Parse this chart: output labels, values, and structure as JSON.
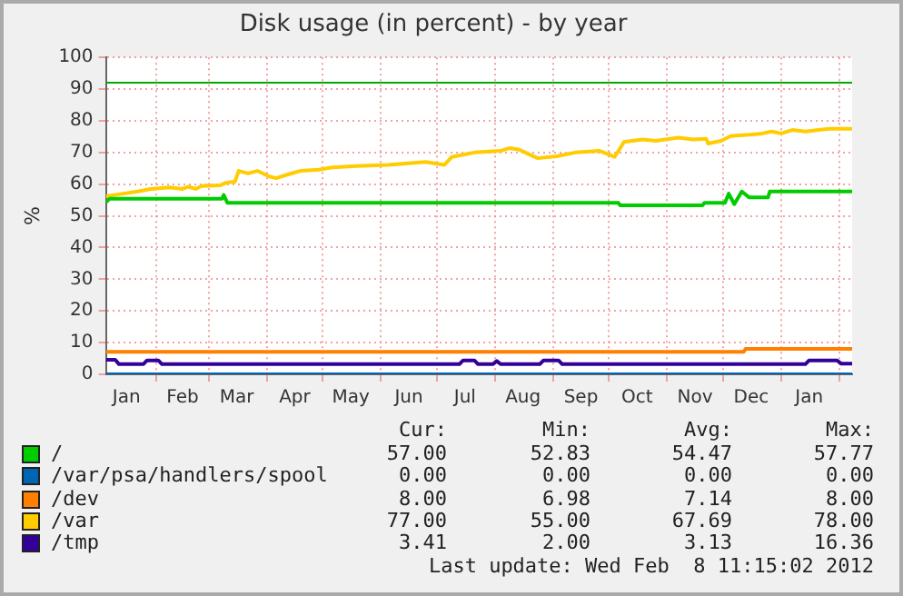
{
  "chart_data": {
    "type": "line",
    "title": "Disk usage (in percent) - by year",
    "ylabel": "%",
    "xlim": [
      "2011-01-05",
      "2012-02-08"
    ],
    "xticks": [
      {
        "value": "2011-01-16",
        "label": "Jan"
      },
      {
        "value": "2011-02-01",
        "label": null
      },
      {
        "value": "2011-02-15",
        "label": "Feb"
      },
      {
        "value": "2011-03-01",
        "label": null
      },
      {
        "value": "2011-03-16",
        "label": "Mar"
      },
      {
        "value": "2011-04-01",
        "label": null
      },
      {
        "value": "2011-04-16",
        "label": "Apr"
      },
      {
        "value": "2011-05-01",
        "label": null
      },
      {
        "value": "2011-05-16",
        "label": "May"
      },
      {
        "value": "2011-06-01",
        "label": null
      },
      {
        "value": "2011-06-16",
        "label": "Jun"
      },
      {
        "value": "2011-07-01",
        "label": null
      },
      {
        "value": "2011-07-16",
        "label": "Jul"
      },
      {
        "value": "2011-08-01",
        "label": null
      },
      {
        "value": "2011-08-16",
        "label": "Aug"
      },
      {
        "value": "2011-09-01",
        "label": null
      },
      {
        "value": "2011-09-16",
        "label": "Sep"
      },
      {
        "value": "2011-10-01",
        "label": null
      },
      {
        "value": "2011-10-16",
        "label": "Oct"
      },
      {
        "value": "2011-11-01",
        "label": null
      },
      {
        "value": "2011-11-16",
        "label": "Nov"
      },
      {
        "value": "2011-12-01",
        "label": null
      },
      {
        "value": "2011-12-16",
        "label": "Dec"
      },
      {
        "value": "2012-01-01",
        "label": null
      },
      {
        "value": "2012-01-16",
        "label": "Jan"
      },
      {
        "value": "2012-02-01",
        "label": null
      }
    ],
    "ylim": [
      0,
      100
    ],
    "yticks": [
      0,
      10,
      20,
      30,
      40,
      50,
      60,
      70,
      80,
      90,
      100
    ],
    "grid": true,
    "legend": "bottom",
    "marker": "none",
    "line_style": "solid",
    "ref_lines": [
      {
        "axis": "y",
        "value": 92,
        "color": "#00aa00"
      }
    ],
    "series": [
      {
        "name": "/",
        "color": "#00cc00",
        "x": [
          "2011-01-05",
          "2011-01-07",
          "2011-03-08",
          "2011-03-09",
          "2011-03-11",
          "2011-10-06",
          "2011-10-07",
          "2011-11-20",
          "2011-11-21",
          "2011-12-02",
          "2011-12-04",
          "2011-12-07",
          "2011-12-11",
          "2011-12-15",
          "2011-12-25",
          "2011-12-26",
          "2012-02-08"
        ],
        "values": [
          54.3,
          55.4,
          55.4,
          56.6,
          54.1,
          54.1,
          53.3,
          53.3,
          54.1,
          54.1,
          57.0,
          53.7,
          57.7,
          55.8,
          55.8,
          57.7,
          57.7
        ]
      },
      {
        "name": "/var/psa/handlers/spool",
        "color": "#0066b3",
        "x": [
          "2011-01-05",
          "2012-02-08"
        ],
        "values": [
          0,
          0
        ]
      },
      {
        "name": "/dev",
        "color": "#ff8000",
        "x": [
          "2011-01-05",
          "2011-12-12",
          "2011-12-13",
          "2012-02-08"
        ],
        "values": [
          7.1,
          7.1,
          8.0,
          8.0
        ]
      },
      {
        "name": "/var",
        "color": "#ffcc00",
        "x": [
          "2011-01-05",
          "2011-01-12",
          "2011-01-22",
          "2011-01-29",
          "2011-02-08",
          "2011-02-15",
          "2011-02-18",
          "2011-02-22",
          "2011-02-25",
          "2011-03-07",
          "2011-03-10",
          "2011-03-15",
          "2011-03-17",
          "2011-03-22",
          "2011-03-27",
          "2011-04-02",
          "2011-04-06",
          "2011-04-12",
          "2011-04-19",
          "2011-04-29",
          "2011-05-06",
          "2011-05-19",
          "2011-06-05",
          "2011-06-25",
          "2011-07-05",
          "2011-07-09",
          "2011-07-21",
          "2011-08-04",
          "2011-08-09",
          "2011-08-14",
          "2011-08-19",
          "2011-08-24",
          "2011-09-03",
          "2011-09-13",
          "2011-09-26",
          "2011-10-04",
          "2011-10-09",
          "2011-10-19",
          "2011-10-26",
          "2011-11-07",
          "2011-11-15",
          "2011-11-22",
          "2011-11-23",
          "2011-11-30",
          "2011-12-05",
          "2011-12-15",
          "2011-12-22",
          "2011-12-27",
          "2012-01-01",
          "2012-01-07",
          "2012-01-14",
          "2012-01-21",
          "2012-01-27",
          "2012-02-08"
        ],
        "values": [
          56.2,
          56.8,
          57.7,
          58.5,
          59.0,
          58.5,
          59.2,
          58.5,
          59.4,
          59.6,
          60.4,
          60.8,
          64.2,
          63.4,
          64.2,
          62.5,
          61.9,
          63.0,
          64.2,
          64.6,
          65.3,
          65.7,
          66.1,
          67.0,
          66.1,
          68.6,
          70.0,
          70.5,
          71.4,
          70.9,
          69.5,
          68.2,
          68.8,
          70.0,
          70.5,
          68.6,
          73.3,
          74.1,
          73.7,
          74.7,
          74.1,
          74.3,
          72.8,
          73.7,
          75.2,
          75.6,
          76.0,
          76.6,
          76.0,
          77.1,
          76.6,
          77.1,
          77.5,
          77.5
        ]
      },
      {
        "name": "/tmp",
        "color": "#330099",
        "x": [
          "2011-01-05",
          "2011-01-10",
          "2011-01-12",
          "2011-01-25",
          "2011-01-27",
          "2011-02-02",
          "2011-02-04",
          "2011-07-13",
          "2011-07-15",
          "2011-07-21",
          "2011-07-23",
          "2011-07-31",
          "2011-08-02",
          "2011-08-04",
          "2011-08-25",
          "2011-08-27",
          "2011-09-04",
          "2011-09-06",
          "2012-01-14",
          "2012-01-16",
          "2012-01-31",
          "2012-02-02",
          "2012-02-08"
        ],
        "values": [
          4.6,
          4.6,
          3.2,
          3.2,
          4.4,
          4.4,
          3.2,
          3.2,
          4.4,
          4.4,
          3.2,
          3.2,
          4.2,
          3.2,
          3.2,
          4.4,
          4.4,
          3.2,
          3.2,
          4.4,
          4.4,
          3.4,
          3.4
        ]
      }
    ],
    "annotations": [
      "Cur:",
      "Min:",
      "Avg:",
      "Max:",
      "57.00",
      "52.83",
      "54.47",
      "57.77",
      "0.00",
      "0.00",
      "0.00",
      "0.00",
      "8.00",
      "6.98",
      "7.14",
      "8.00",
      "77.00",
      "55.00",
      "67.69",
      "78.00",
      "3.41",
      "2.00",
      "3.13",
      "16.36",
      "Last update: Wed Feb  8 11:15:02 2012"
    ]
  }
}
